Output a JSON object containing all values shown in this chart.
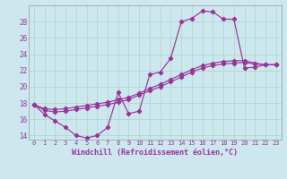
{
  "xlabel": "Windchill (Refroidissement éolien,°C)",
  "bg_color": "#cce8ee",
  "grid_color": "#b0d8cc",
  "line_color": "#993399",
  "xlim": [
    -0.5,
    23.5
  ],
  "ylim": [
    13.5,
    30.0
  ],
  "yticks": [
    14,
    16,
    18,
    20,
    22,
    24,
    26,
    28
  ],
  "xticks": [
    0,
    1,
    2,
    3,
    4,
    5,
    6,
    7,
    8,
    9,
    10,
    11,
    12,
    13,
    14,
    15,
    16,
    17,
    18,
    19,
    20,
    21,
    22,
    23
  ],
  "line_jagged_x": [
    0,
    1,
    2,
    3,
    4,
    5,
    6,
    7,
    8,
    9,
    10,
    11,
    12,
    13,
    14,
    15,
    16,
    17,
    18,
    19,
    20,
    21,
    22,
    23
  ],
  "line_jagged_y": [
    17.8,
    16.6,
    15.8,
    15.0,
    14.0,
    13.7,
    14.0,
    15.0,
    19.3,
    16.7,
    17.0,
    21.5,
    21.8,
    23.5,
    28.0,
    28.4,
    29.3,
    29.2,
    28.3,
    28.3,
    22.3,
    22.4,
    22.7,
    22.7
  ],
  "line_diag1_x": [
    0,
    1,
    2,
    3,
    4,
    5,
    6,
    7,
    8,
    9,
    10,
    11,
    12,
    13,
    14,
    15,
    16,
    17,
    18,
    19,
    20,
    21,
    22,
    23
  ],
  "line_diag1_y": [
    17.8,
    17.1,
    16.9,
    17.0,
    17.2,
    17.4,
    17.6,
    17.8,
    18.1,
    18.4,
    19.0,
    19.5,
    20.0,
    20.6,
    21.2,
    21.8,
    22.3,
    22.6,
    22.8,
    22.9,
    23.0,
    22.8,
    22.7,
    22.7
  ],
  "line_diag2_x": [
    0,
    1,
    2,
    3,
    4,
    5,
    6,
    7,
    8,
    9,
    10,
    11,
    12,
    13,
    14,
    15,
    16,
    17,
    18,
    19,
    20,
    21,
    22,
    23
  ],
  "line_diag2_y": [
    17.8,
    17.3,
    17.2,
    17.3,
    17.5,
    17.7,
    17.9,
    18.1,
    18.4,
    18.7,
    19.2,
    19.8,
    20.3,
    20.9,
    21.5,
    22.1,
    22.6,
    22.9,
    23.1,
    23.2,
    23.2,
    22.9,
    22.7,
    22.7
  ]
}
